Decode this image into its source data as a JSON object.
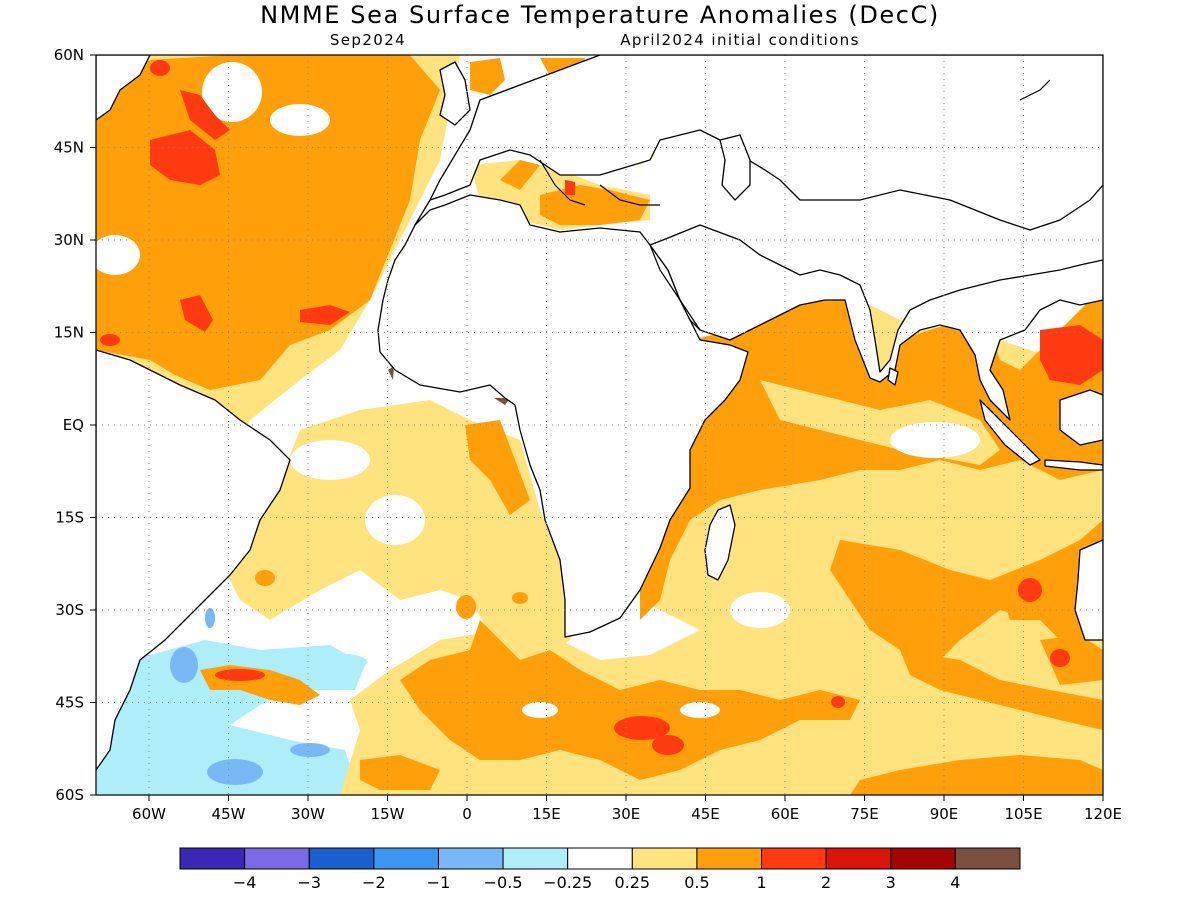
{
  "title": "NMME Sea Surface Temperature Anomalies (DecC)",
  "target_month": "Sep2024",
  "init_conditions": "April2024 initial conditions",
  "map": {
    "projection": "lat-lon",
    "lon_range": [
      -70,
      120
    ],
    "lat_range": [
      -60,
      60
    ],
    "grid": "dotted",
    "land_color": "#ffffff",
    "lat_labels": [
      "60N",
      "45N",
      "30N",
      "15N",
      "EQ",
      "15S",
      "30S",
      "45S",
      "60S"
    ],
    "lon_labels": [
      "60W",
      "45W",
      "30W",
      "15W",
      "0",
      "15E",
      "30E",
      "45E",
      "60E",
      "75E",
      "90E",
      "105E",
      "120E"
    ]
  },
  "colorbar": {
    "colors": [
      "#3a27b5",
      "#7b69e8",
      "#1a5fd0",
      "#3b95f2",
      "#7ab8f5",
      "#aeeef8",
      "#ffffff",
      "#ffe37e",
      "#ffa00a",
      "#ff3a10",
      "#d9150a",
      "#a50407",
      "#7a4f40"
    ],
    "labels": [
      "−4",
      "−3",
      "−2",
      "−1",
      "−0.5",
      "−0.25",
      "0.25",
      "0.5",
      "1",
      "2",
      "3",
      "4"
    ]
  }
}
